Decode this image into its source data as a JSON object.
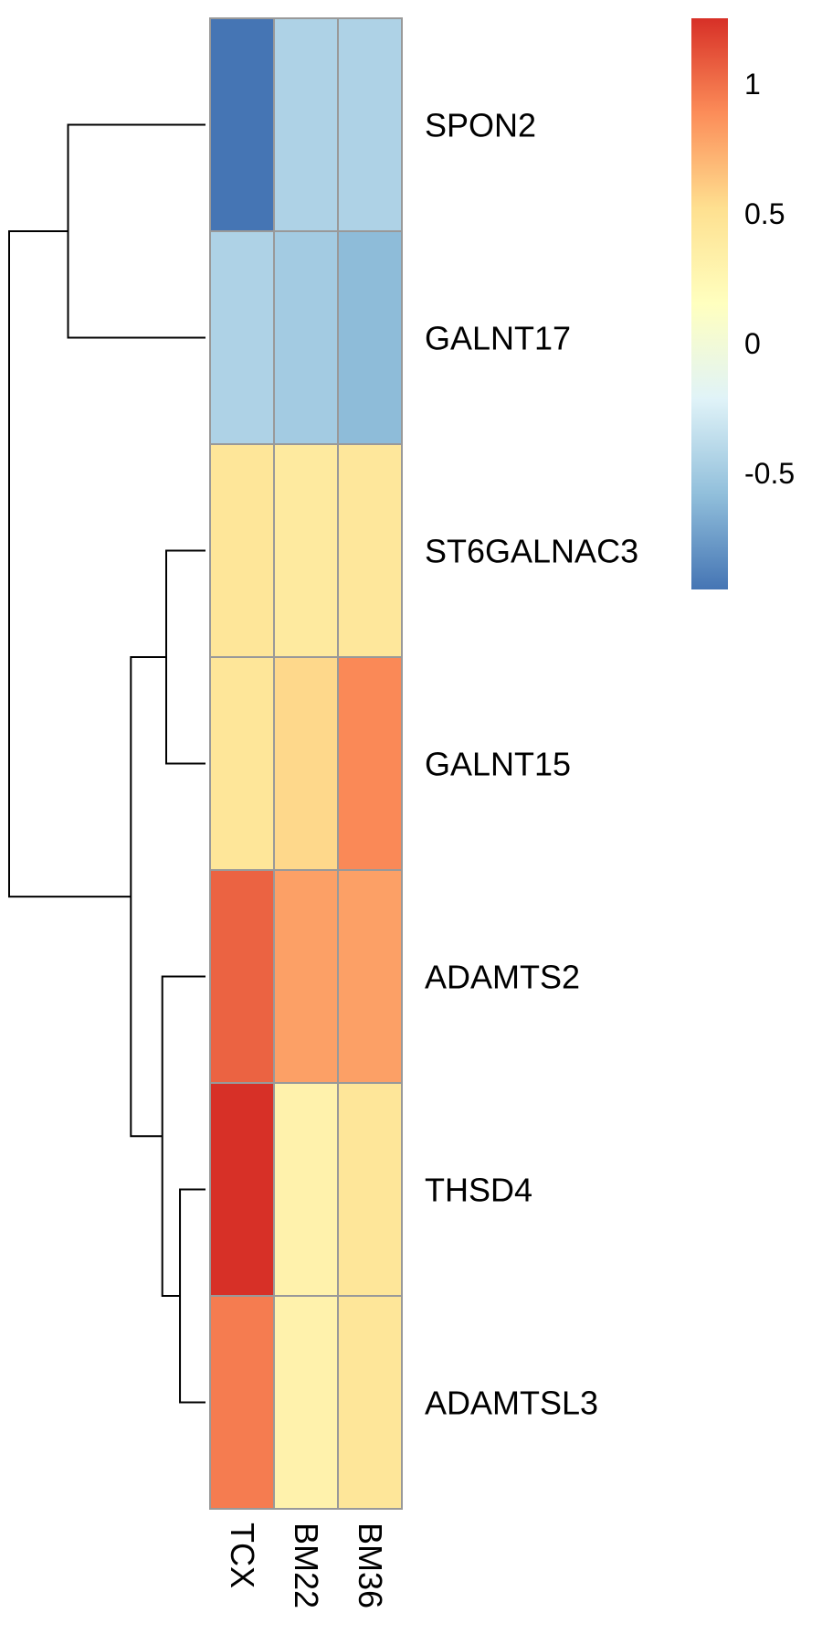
{
  "chart_data": {
    "type": "heatmap",
    "title": "",
    "xlabel": "",
    "ylabel": "",
    "columns": [
      "TCX",
      "BM22",
      "BM36"
    ],
    "rows": [
      "SPON2",
      "GALNT17",
      "ST6GALNAC3",
      "GALNT15",
      "ADAMTS2",
      "THSD4",
      "ADAMTSL3"
    ],
    "values": [
      [
        -0.95,
        -0.45,
        -0.45
      ],
      [
        -0.45,
        -0.5,
        -0.6
      ],
      [
        0.45,
        0.4,
        0.43
      ],
      [
        0.45,
        0.55,
        0.9
      ],
      [
        1.05,
        0.8,
        0.8
      ],
      [
        1.25,
        0.3,
        0.45
      ],
      [
        0.95,
        0.3,
        0.45
      ]
    ],
    "row_dendrogram": {
      "merges": [
        {
          "a": "SPON2",
          "b": "GALNT17",
          "height": 0.7
        },
        {
          "a": "ST6GALNAC3",
          "b": "GALNT15",
          "height": 0.2
        },
        {
          "a": "THSD4",
          "b": "ADAMTSL3",
          "height": 0.13
        },
        {
          "a": "ADAMTS2",
          "b": "THSD4+ADAMTSL3",
          "height": 0.22
        },
        {
          "a": "ST6GALNAC3+GALNT15",
          "b": "ADAMTS2+THSD4+ADAMTSL3",
          "height": 0.38
        },
        {
          "a": "SPON2+GALNT17",
          "b": "ST6GALNAC3+GALNT15+ADAMTS2+THSD4+ADAMTSL3",
          "height": 1.0
        }
      ]
    },
    "legend": {
      "placement": "top-right",
      "min": -0.95,
      "max": 1.25,
      "ticks": [
        {
          "value": 1,
          "label": "1"
        },
        {
          "value": 0.5,
          "label": "0.5"
        },
        {
          "value": 0,
          "label": "0"
        },
        {
          "value": -0.5,
          "label": "-0.5"
        }
      ],
      "colors": [
        "#4575b4",
        "#91bfdb",
        "#e0f3f8",
        "#ffffbf",
        "#fee090",
        "#fc8d59",
        "#d73027"
      ]
    },
    "cell_border_color": "#999999"
  }
}
